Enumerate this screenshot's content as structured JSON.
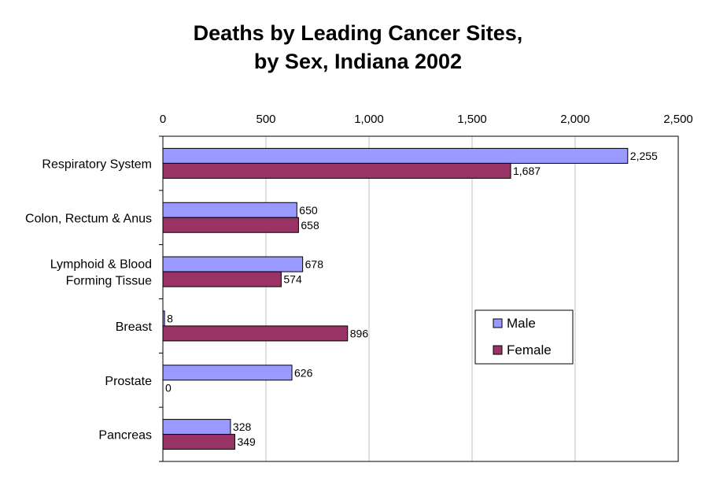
{
  "title_line1": "Deaths by Leading Cancer Sites,",
  "title_line2": "by Sex, Indiana 2002",
  "colors": {
    "male": "#9999ff",
    "female": "#993366",
    "grid": "#c0c0c0"
  },
  "chart_data": {
    "type": "bar",
    "orientation": "horizontal",
    "title": "Deaths by Leading Cancer Sites, by Sex, Indiana 2002",
    "xaxis_position": "top",
    "xlim": [
      0,
      2500
    ],
    "xticks": [
      "0",
      "500",
      "1,000",
      "1,500",
      "2,000",
      "2,500"
    ],
    "grid": true,
    "legend_position": "right",
    "categories": [
      [
        "Respiratory System"
      ],
      [
        "Colon, Rectum & Anus"
      ],
      [
        "Lymphoid & Blood",
        "Forming Tissue"
      ],
      [
        "Breast"
      ],
      [
        "Prostate"
      ],
      [
        "Pancreas"
      ]
    ],
    "series": [
      {
        "name": "Male",
        "values": [
          2255,
          650,
          678,
          8,
          626,
          328
        ],
        "labels": [
          "2,255",
          "650",
          "678",
          "8",
          "626",
          "328"
        ]
      },
      {
        "name": "Female",
        "values": [
          1687,
          658,
          574,
          896,
          0,
          349
        ],
        "labels": [
          "1,687",
          "658",
          "574",
          "896",
          "0",
          "349"
        ]
      }
    ]
  }
}
